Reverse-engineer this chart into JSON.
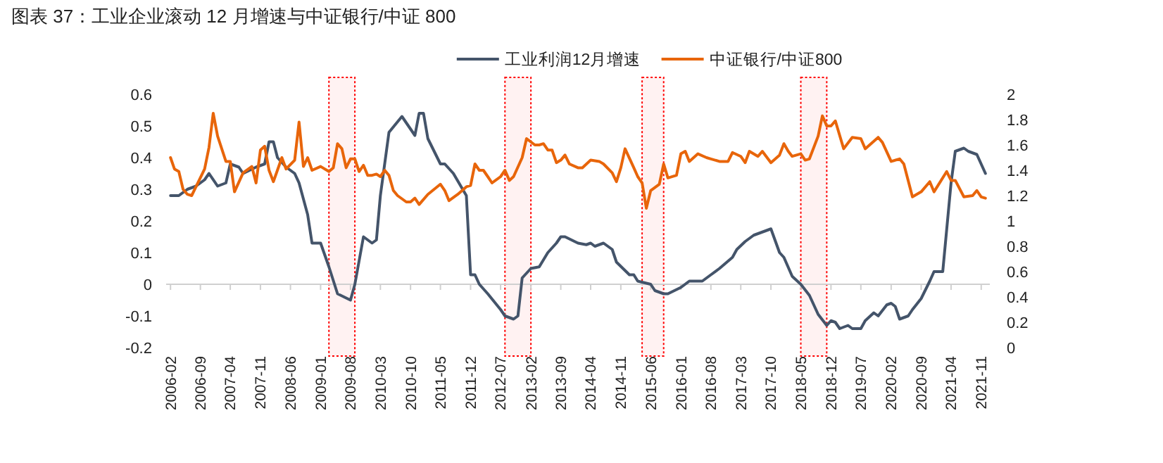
{
  "chart_data": {
    "type": "line",
    "title": "图表 37：工业企业滚动 12 月增速与中证银行/中证 800",
    "legend": "top",
    "xlim": [
      "2006-01",
      "2022-01"
    ],
    "xticks": [
      "2006-02",
      "2006-09",
      "2007-04",
      "2007-11",
      "2008-06",
      "2009-01",
      "2009-08",
      "2010-03",
      "2010-10",
      "2011-05",
      "2011-12",
      "2012-07",
      "2013-02",
      "2013-09",
      "2014-04",
      "2014-11",
      "2015-06",
      "2016-01",
      "2016-08",
      "2017-03",
      "2017-10",
      "2018-05",
      "2018-12",
      "2019-07",
      "2020-02",
      "2020-09",
      "2021-04",
      "2021-11"
    ],
    "ylim": [
      -0.2,
      0.6
    ],
    "yticks": [
      -0.2,
      -0.1,
      0,
      0.1,
      0.2,
      0.3,
      0.4,
      0.5,
      0.6
    ],
    "y2lim": [
      0,
      2
    ],
    "y2ticks": [
      0,
      0.2,
      0.4,
      0.6,
      0.8,
      1,
      1.2,
      1.4,
      1.6,
      1.8,
      2
    ],
    "bands": [
      {
        "axis": "x",
        "from": "2009-03",
        "to": "2009-09",
        "color": "#ff0000"
      },
      {
        "axis": "x",
        "from": "2012-08",
        "to": "2013-02",
        "color": "#ff0000"
      },
      {
        "axis": "x",
        "from": "2015-04",
        "to": "2015-09",
        "color": "#ff0000"
      },
      {
        "axis": "x",
        "from": "2018-05",
        "to": "2018-11",
        "color": "#ff0000"
      }
    ],
    "series": [
      {
        "name": "工业利润12月增速",
        "color": "#44546a",
        "x": [
          "2006-02",
          "2006-04",
          "2006-06",
          "2006-08",
          "2006-10",
          "2006-11",
          "2007-01",
          "2007-03",
          "2007-04",
          "2007-06",
          "2007-07",
          "2007-10",
          "2007-12",
          "2008-01",
          "2008-02",
          "2008-03",
          "2008-05",
          "2008-07",
          "2008-08",
          "2008-10",
          "2008-11",
          "2009-01",
          "2009-03",
          "2009-05",
          "2009-08",
          "2009-09",
          "2009-11",
          "2010-01",
          "2010-02",
          "2010-03",
          "2010-05",
          "2010-08",
          "2010-11",
          "2010-12",
          "2011-01",
          "2011-02",
          "2011-05",
          "2011-06",
          "2011-08",
          "2011-11",
          "2011-12",
          "2012-01",
          "2012-02",
          "2012-04",
          "2012-07",
          "2012-08",
          "2012-10",
          "2012-11",
          "2012-12",
          "2013-02",
          "2013-04",
          "2013-06",
          "2013-08",
          "2013-09",
          "2013-10",
          "2014-01",
          "2014-03",
          "2014-04",
          "2014-05",
          "2014-07",
          "2014-09",
          "2014-10",
          "2015-01",
          "2015-02",
          "2015-03",
          "2015-06",
          "2015-07",
          "2015-09",
          "2015-10",
          "2016-01",
          "2016-03",
          "2016-06",
          "2016-08",
          "2016-10",
          "2017-01",
          "2017-02",
          "2017-04",
          "2017-06",
          "2017-08",
          "2017-10",
          "2017-12",
          "2018-01",
          "2018-03",
          "2018-05",
          "2018-07",
          "2018-09",
          "2018-11",
          "2018-12",
          "2019-01",
          "2019-02",
          "2019-04",
          "2019-05",
          "2019-07",
          "2019-08",
          "2019-10",
          "2019-11",
          "2020-01",
          "2020-02",
          "2020-03",
          "2020-04",
          "2020-06",
          "2020-07",
          "2020-09",
          "2020-11",
          "2020-12",
          "2021-02",
          "2021-04",
          "2021-05",
          "2021-07",
          "2021-08",
          "2021-10",
          "2021-12"
        ],
        "values": [
          0.28,
          0.28,
          0.3,
          0.31,
          0.33,
          0.35,
          0.31,
          0.32,
          0.38,
          0.37,
          0.35,
          0.37,
          0.38,
          0.45,
          0.45,
          0.4,
          0.37,
          0.35,
          0.32,
          0.22,
          0.13,
          0.13,
          0.055,
          -0.03,
          -0.05,
          0.0,
          0.15,
          0.13,
          0.14,
          0.28,
          0.48,
          0.53,
          0.47,
          0.54,
          0.54,
          0.46,
          0.38,
          0.38,
          0.35,
          0.28,
          0.03,
          0.03,
          0.0,
          -0.03,
          -0.08,
          -0.1,
          -0.11,
          -0.1,
          0.02,
          0.05,
          0.055,
          0.1,
          0.13,
          0.15,
          0.15,
          0.13,
          0.125,
          0.13,
          0.12,
          0.13,
          0.11,
          0.07,
          0.03,
          0.03,
          0.01,
          0.0,
          -0.02,
          -0.03,
          -0.03,
          -0.01,
          0.01,
          0.01,
          0.03,
          0.05,
          0.085,
          0.11,
          0.135,
          0.155,
          0.165,
          0.175,
          0.1,
          0.085,
          0.025,
          0.0,
          -0.035,
          -0.095,
          -0.13,
          -0.115,
          -0.12,
          -0.14,
          -0.13,
          -0.14,
          -0.14,
          -0.115,
          -0.09,
          -0.1,
          -0.065,
          -0.06,
          -0.07,
          -0.11,
          -0.1,
          -0.08,
          -0.045,
          0.01,
          0.04,
          0.04,
          0.32,
          0.42,
          0.43,
          0.42,
          0.41,
          0.35
        ]
      },
      {
        "name": "中证银行/中证800",
        "color": "#e8650a",
        "axis": "y2",
        "x": [
          "2006-02",
          "2006-03",
          "2006-04",
          "2006-05",
          "2006-06",
          "2006-07",
          "2006-10",
          "2006-11",
          "2006-12",
          "2007-01",
          "2007-03",
          "2007-04",
          "2007-05",
          "2007-07",
          "2007-09",
          "2007-10",
          "2007-11",
          "2007-12",
          "2008-01",
          "2008-02",
          "2008-04",
          "2008-05",
          "2008-07",
          "2008-08",
          "2008-09",
          "2008-10",
          "2008-11",
          "2009-01",
          "2009-03",
          "2009-04",
          "2009-05",
          "2009-06",
          "2009-07",
          "2009-08",
          "2009-09",
          "2009-10",
          "2009-11",
          "2009-12",
          "2010-01",
          "2010-02",
          "2010-03",
          "2010-04",
          "2010-05",
          "2010-06",
          "2010-07",
          "2010-09",
          "2010-10",
          "2010-11",
          "2010-12",
          "2011-02",
          "2011-05",
          "2011-06",
          "2011-07",
          "2011-09",
          "2011-11",
          "2011-12",
          "2012-01",
          "2012-02",
          "2012-03",
          "2012-04",
          "2012-05",
          "2012-07",
          "2012-08",
          "2012-09",
          "2012-10",
          "2012-12",
          "2013-01",
          "2013-03",
          "2013-04",
          "2013-05",
          "2013-06",
          "2013-07",
          "2013-08",
          "2013-09",
          "2013-10",
          "2013-11",
          "2014-01",
          "2014-02",
          "2014-04",
          "2014-06",
          "2014-07",
          "2014-09",
          "2014-10",
          "2014-11",
          "2014-12",
          "2015-02",
          "2015-03",
          "2015-04",
          "2015-05",
          "2015-06",
          "2015-08",
          "2015-09",
          "2015-10",
          "2015-12",
          "2016-01",
          "2016-02",
          "2016-03",
          "2016-05",
          "2016-07",
          "2016-08",
          "2016-10",
          "2016-12",
          "2017-01",
          "2017-03",
          "2017-04",
          "2017-05",
          "2017-07",
          "2017-08",
          "2017-10",
          "2017-12",
          "2018-01",
          "2018-02",
          "2018-03",
          "2018-05",
          "2018-06",
          "2018-07",
          "2018-09",
          "2018-10",
          "2018-11",
          "2018-12",
          "2019-01",
          "2019-03",
          "2019-05",
          "2019-07",
          "2019-08",
          "2019-11",
          "2019-12",
          "2020-02",
          "2020-04",
          "2020-05",
          "2020-07",
          "2020-09",
          "2020-11",
          "2020-12",
          "2021-03",
          "2021-04",
          "2021-05",
          "2021-07",
          "2021-09",
          "2021-10",
          "2021-11",
          "2021-12"
        ],
        "values": [
          1.5,
          1.41,
          1.39,
          1.25,
          1.21,
          1.2,
          1.41,
          1.58,
          1.85,
          1.67,
          1.47,
          1.47,
          1.23,
          1.38,
          1.43,
          1.3,
          1.56,
          1.59,
          1.4,
          1.31,
          1.5,
          1.41,
          1.48,
          1.78,
          1.43,
          1.5,
          1.4,
          1.43,
          1.39,
          1.42,
          1.61,
          1.57,
          1.42,
          1.49,
          1.49,
          1.39,
          1.44,
          1.36,
          1.36,
          1.37,
          1.35,
          1.4,
          1.36,
          1.24,
          1.2,
          1.15,
          1.15,
          1.18,
          1.13,
          1.21,
          1.29,
          1.24,
          1.16,
          1.21,
          1.27,
          1.28,
          1.45,
          1.4,
          1.4,
          1.35,
          1.3,
          1.35,
          1.4,
          1.32,
          1.35,
          1.5,
          1.65,
          1.6,
          1.6,
          1.61,
          1.56,
          1.56,
          1.46,
          1.48,
          1.52,
          1.45,
          1.42,
          1.42,
          1.48,
          1.47,
          1.45,
          1.38,
          1.31,
          1.42,
          1.57,
          1.42,
          1.35,
          1.3,
          1.1,
          1.24,
          1.29,
          1.45,
          1.34,
          1.36,
          1.53,
          1.55,
          1.47,
          1.53,
          1.5,
          1.49,
          1.47,
          1.47,
          1.54,
          1.51,
          1.46,
          1.55,
          1.51,
          1.55,
          1.46,
          1.52,
          1.61,
          1.55,
          1.51,
          1.53,
          1.48,
          1.49,
          1.67,
          1.83,
          1.75,
          1.75,
          1.79,
          1.57,
          1.66,
          1.65,
          1.57,
          1.66,
          1.62,
          1.47,
          1.49,
          1.45,
          1.19,
          1.23,
          1.31,
          1.23,
          1.39,
          1.32,
          1.32,
          1.19,
          1.2,
          1.24,
          1.19,
          1.18
        ]
      }
    ]
  }
}
